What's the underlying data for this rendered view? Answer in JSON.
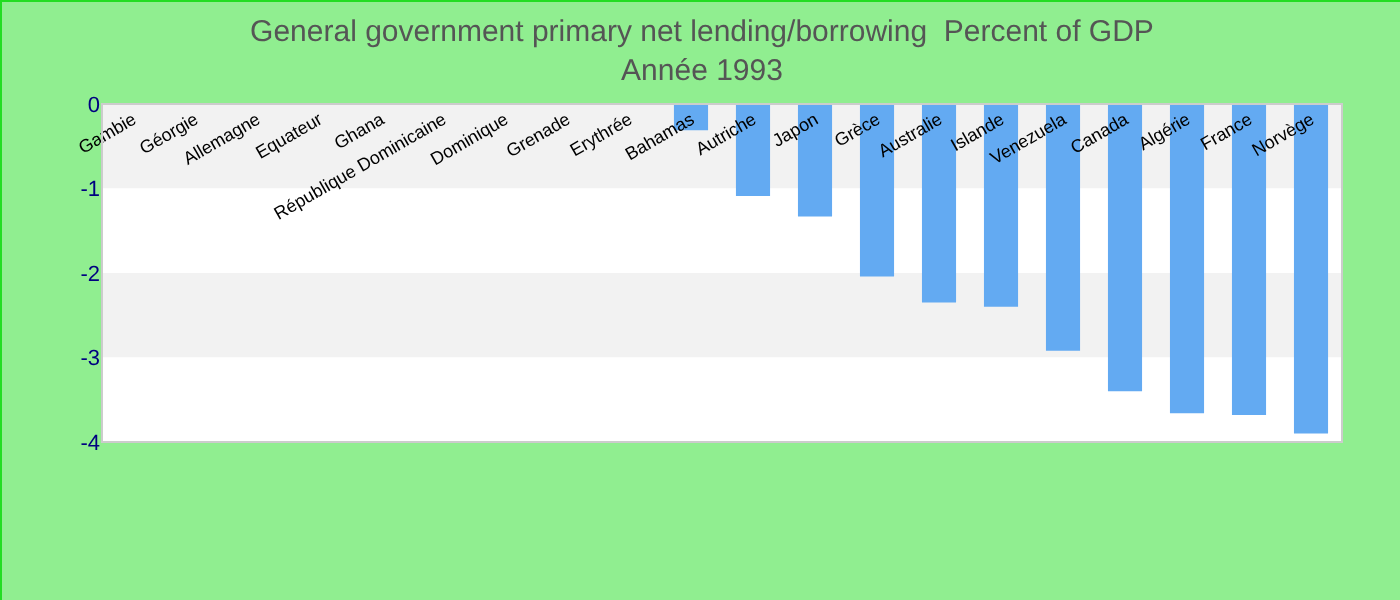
{
  "chart_data": {
    "type": "bar",
    "title": "General government primary net lending/borrowing  Percent of GDP",
    "subtitle": "Année 1993",
    "categories": [
      "Gambie",
      "Géorgie",
      "Allemagne",
      "Equateur",
      "Ghana",
      "République Dominicaine",
      "Dominique",
      "Grenade",
      "Erythrée",
      "Bahamas",
      "Autriche",
      "Japon",
      "Grèce",
      "Australie",
      "Islande",
      "Venezuela",
      "Canada",
      "Algérie",
      "France",
      "Norvège"
    ],
    "values": [
      null,
      null,
      null,
      null,
      null,
      null,
      null,
      null,
      null,
      -0.31,
      -1.09,
      -1.33,
      -2.04,
      -2.35,
      -2.4,
      -2.92,
      -3.4,
      -3.66,
      -3.68,
      -3.9
    ],
    "color": "#63aaf2",
    "ylim": [
      -4,
      0
    ],
    "yticks": [
      -4,
      -3,
      -2,
      -1,
      0
    ]
  }
}
